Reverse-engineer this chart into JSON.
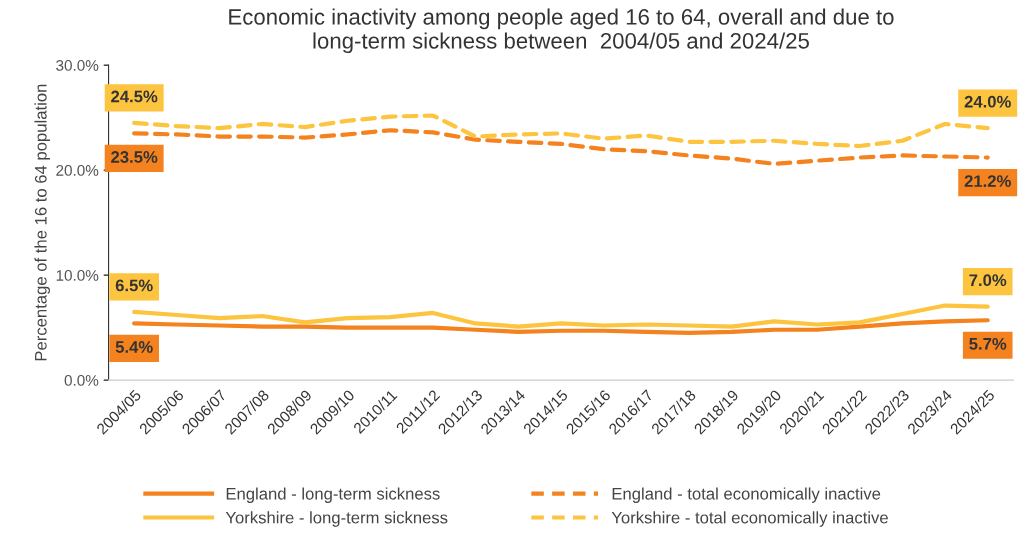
{
  "chart_data": {
    "type": "line",
    "title": "Economic inactivity among people aged 16 to 64, overall and due to\nlong-term sickness between  2004/05 and 2024/25",
    "ylabel": "Percentage of the 16 to 64 population",
    "categories": [
      "2004/05",
      "2005/06",
      "2006/07",
      "2007/08",
      "2008/09",
      "2009/10",
      "2010/11",
      "2011/12",
      "2012/13",
      "2013/14",
      "2014/15",
      "2015/16",
      "2016/17",
      "2017/18",
      "2018/19",
      "2019/20",
      "2020/21",
      "2021/22",
      "2022/23",
      "2023/24",
      "2024/25"
    ],
    "series": [
      {
        "name": "England - long-term sickness",
        "color": "#f4821f",
        "line_style": "solid",
        "values": [
          5.4,
          5.3,
          5.2,
          5.1,
          5.1,
          5.0,
          5.0,
          5.0,
          4.8,
          4.6,
          4.7,
          4.7,
          4.6,
          4.5,
          4.6,
          4.8,
          4.8,
          5.1,
          5.4,
          5.6,
          5.7
        ],
        "value_labels": [
          "5.4%",
          null,
          null,
          null,
          null,
          null,
          null,
          null,
          null,
          null,
          null,
          null,
          null,
          null,
          null,
          null,
          null,
          null,
          null,
          null,
          "5.7%"
        ]
      },
      {
        "name": "Yorkshire - long-term sickness",
        "color": "#fdc43f",
        "line_style": "solid",
        "values": [
          6.5,
          6.2,
          5.9,
          6.1,
          5.5,
          5.9,
          6.0,
          6.4,
          5.4,
          5.1,
          5.4,
          5.2,
          5.3,
          5.2,
          5.1,
          5.6,
          5.3,
          5.5,
          6.3,
          7.1,
          7.0
        ],
        "value_labels": [
          "6.5%",
          null,
          null,
          null,
          null,
          null,
          null,
          null,
          null,
          null,
          null,
          null,
          null,
          null,
          null,
          null,
          null,
          null,
          null,
          null,
          "7.0%"
        ]
      },
      {
        "name": "England - total economically inactive",
        "color": "#f4821f",
        "line_style": "dashed",
        "values": [
          23.5,
          23.4,
          23.2,
          23.2,
          23.1,
          23.4,
          23.8,
          23.6,
          22.9,
          22.7,
          22.5,
          22.0,
          21.8,
          21.4,
          21.1,
          20.6,
          20.9,
          21.2,
          21.4,
          21.3,
          21.2
        ],
        "value_labels": [
          "23.5%",
          null,
          null,
          null,
          null,
          null,
          null,
          null,
          null,
          null,
          null,
          null,
          null,
          null,
          null,
          null,
          null,
          null,
          null,
          null,
          "21.2%"
        ]
      },
      {
        "name": "Yorkshire - total economically inactive",
        "color": "#fdc43f",
        "line_style": "dashed",
        "values": [
          24.5,
          24.2,
          24.0,
          24.4,
          24.1,
          24.7,
          25.1,
          25.2,
          23.2,
          23.4,
          23.5,
          23.0,
          23.3,
          22.7,
          22.7,
          22.8,
          22.5,
          22.3,
          22.8,
          24.4,
          24.0
        ],
        "value_labels": [
          "24.5%",
          null,
          null,
          null,
          null,
          null,
          null,
          null,
          null,
          null,
          null,
          null,
          null,
          null,
          null,
          null,
          null,
          null,
          null,
          null,
          "24.0%"
        ]
      }
    ],
    "ylim": [
      0,
      30
    ],
    "yticks": [
      {
        "value": 0,
        "label": "0.0%"
      },
      {
        "value": 10,
        "label": "10.0%"
      },
      {
        "value": 20,
        "label": "20.0%"
      },
      {
        "value": 30,
        "label": "30.0%"
      }
    ],
    "grid": false,
    "legend": "bottom",
    "marker": "none"
  }
}
